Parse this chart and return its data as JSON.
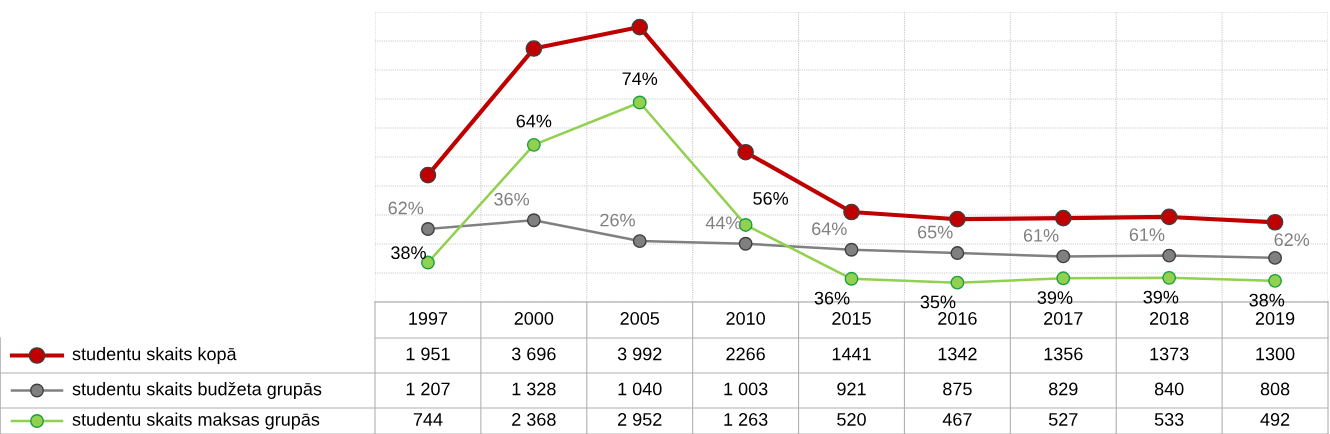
{
  "chart_data": {
    "type": "line",
    "categories": [
      "1997",
      "2000",
      "2005",
      "2010",
      "2015",
      "2016",
      "2017",
      "2018",
      "2019"
    ],
    "series": [
      {
        "name": "studentu skaits kopā",
        "color": "#c00000",
        "values": [
          1951,
          3696,
          3992,
          2266,
          1441,
          1342,
          1356,
          1373,
          1300
        ],
        "value_labels": [
          "1 951",
          "3 696",
          "3 992",
          "2266",
          "1441",
          "1342",
          "1356",
          "1373",
          "1300"
        ]
      },
      {
        "name": "studentu skaits budžeta grupās",
        "color": "#808080",
        "values": [
          1207,
          1328,
          1040,
          1003,
          921,
          875,
          829,
          840,
          808
        ],
        "value_labels": [
          "1 207",
          "1 328",
          "1 040",
          "1 003",
          "921",
          "875",
          "829",
          "840",
          "808"
        ]
      },
      {
        "name": "studentu skaits maksas grupās",
        "color": "#92d050",
        "values": [
          744,
          2368,
          2952,
          1263,
          520,
          467,
          527,
          533,
          492
        ],
        "value_labels": [
          "744",
          "2 368",
          "2 952",
          "1 263",
          "520",
          "467",
          "527",
          "533",
          "492"
        ]
      }
    ],
    "annotations": [
      {
        "text": "62%",
        "x": "1997",
        "y": 1207
      },
      {
        "text": "36%",
        "x": "2000",
        "y": 1328
      },
      {
        "text": "26%",
        "x": "2005",
        "y": 1040
      },
      {
        "text": "44%",
        "x": "2010",
        "y": 1003
      },
      {
        "text": "64%",
        "x": "2015",
        "y": 921
      },
      {
        "text": "65%",
        "x": "2016",
        "y": 875
      },
      {
        "text": "61%",
        "x": "2017",
        "y": 829
      },
      {
        "text": "61%",
        "x": "2018",
        "y": 840
      },
      {
        "text": "62%",
        "x": "2019",
        "y": 808
      },
      {
        "text": "38%",
        "x": "1997",
        "y": 744
      },
      {
        "text": "64%",
        "x": "2000",
        "y": 2368
      },
      {
        "text": "74%",
        "x": "2005",
        "y": 2952
      },
      {
        "text": "56%",
        "x": "2010",
        "y": 1263
      },
      {
        "text": "36%",
        "x": "2015",
        "y": 520
      },
      {
        "text": "35%",
        "x": "2016",
        "y": 467
      },
      {
        "text": "39%",
        "x": "2017",
        "y": 527
      },
      {
        "text": "39%",
        "x": "2018",
        "y": 533
      },
      {
        "text": "38%",
        "x": "2019",
        "y": 492
      }
    ],
    "ylim": [
      200,
      4200
    ],
    "yticks": [
      {
        "value": 200,
        "label": null
      },
      {
        "value": 600,
        "label": null
      },
      {
        "value": 1000,
        "label": null
      },
      {
        "value": 1400,
        "label": null
      },
      {
        "value": 1800,
        "label": null
      },
      {
        "value": 2200,
        "label": null
      },
      {
        "value": 2600,
        "label": null
      },
      {
        "value": 3000,
        "label": null
      },
      {
        "value": 3400,
        "label": null
      },
      {
        "value": 3800,
        "label": null
      },
      {
        "value": 4200,
        "label": null
      }
    ],
    "grid": true,
    "marker": "circle",
    "line_style": "solid",
    "legend": "bottom left"
  }
}
